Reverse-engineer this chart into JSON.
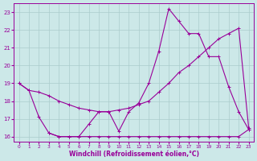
{
  "xlabel": "Windchill (Refroidissement éolien,°C)",
  "background_color": "#cce8e8",
  "grid_color": "#aacccc",
  "line_color": "#990099",
  "xlim": [
    -0.5,
    23.5
  ],
  "ylim": [
    15.7,
    23.5
  ],
  "yticks": [
    16,
    17,
    18,
    19,
    20,
    21,
    22,
    23
  ],
  "xticks": [
    0,
    1,
    2,
    3,
    4,
    5,
    6,
    7,
    8,
    9,
    10,
    11,
    12,
    13,
    14,
    15,
    16,
    17,
    18,
    19,
    20,
    21,
    22,
    23
  ],
  "line1_x": [
    0,
    1,
    2,
    3,
    4,
    5,
    6,
    7,
    8,
    9,
    10,
    11,
    12,
    13,
    14,
    15,
    16,
    17,
    18,
    19,
    20,
    21,
    22,
    23
  ],
  "line1_y": [
    19.0,
    18.6,
    18.5,
    18.3,
    18.0,
    17.8,
    17.6,
    17.5,
    17.4,
    17.4,
    17.5,
    17.6,
    17.8,
    18.0,
    18.5,
    19.0,
    19.6,
    20.0,
    20.5,
    21.0,
    21.5,
    21.8,
    22.1,
    16.5
  ],
  "line2_x": [
    0,
    1,
    2,
    3,
    4,
    5,
    6,
    7,
    8,
    9,
    10,
    11,
    12,
    13,
    14,
    15,
    16,
    17,
    18,
    19,
    20,
    21,
    22,
    23
  ],
  "line2_y": [
    19.0,
    18.6,
    17.1,
    16.2,
    16.0,
    16.0,
    16.0,
    16.7,
    17.4,
    17.4,
    16.3,
    17.4,
    17.9,
    19.0,
    20.8,
    23.2,
    22.5,
    21.8,
    21.8,
    20.5,
    20.5,
    18.8,
    17.4,
    16.4
  ],
  "line3_x": [
    3,
    4,
    5,
    6,
    7,
    8,
    9,
    10,
    11,
    12,
    13,
    14,
    15,
    16,
    17,
    18,
    19,
    20,
    21,
    22,
    23
  ],
  "line3_y": [
    16.2,
    16.0,
    16.0,
    16.0,
    16.0,
    16.0,
    16.0,
    16.0,
    16.0,
    16.0,
    16.0,
    16.0,
    16.0,
    16.0,
    16.0,
    16.0,
    16.0,
    16.0,
    16.0,
    16.0,
    16.4
  ]
}
